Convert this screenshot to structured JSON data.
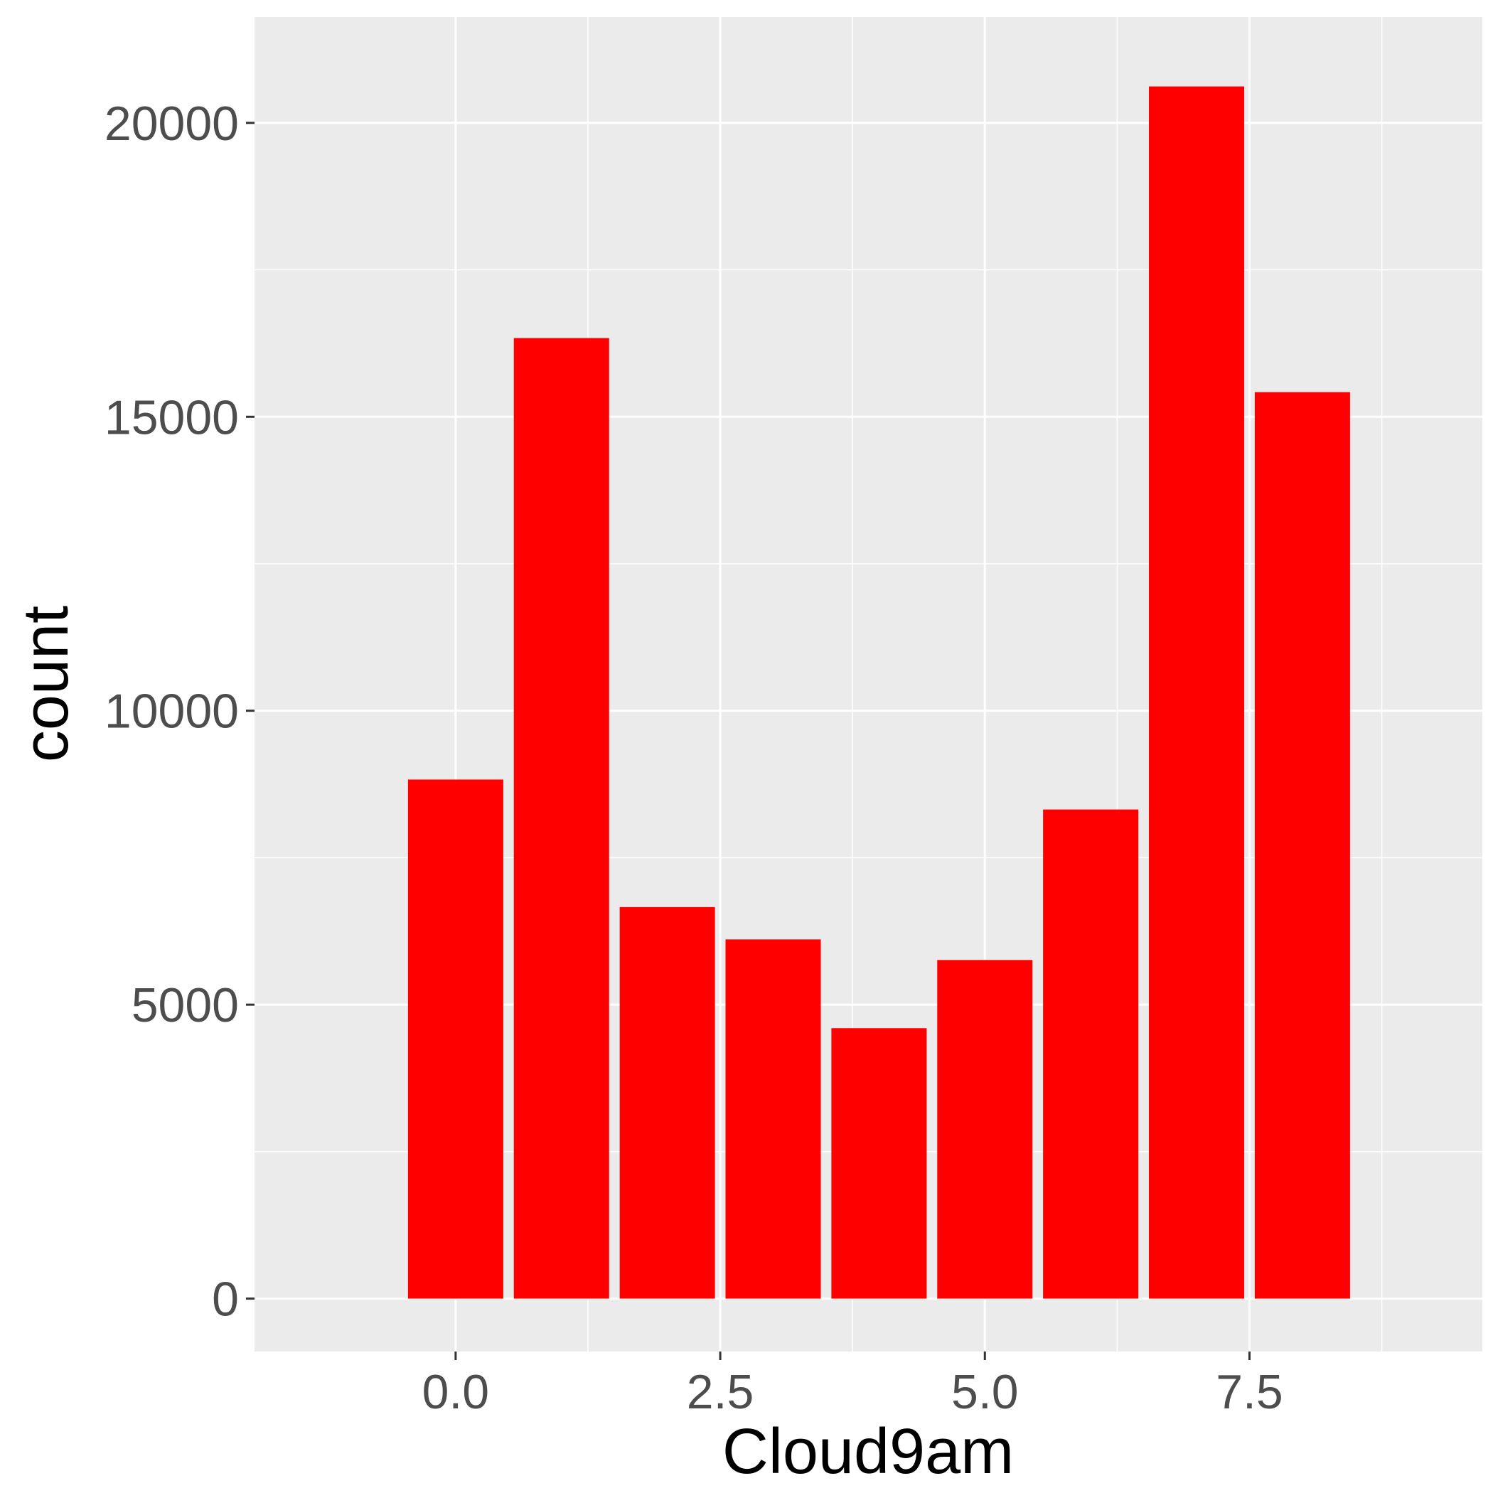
{
  "chart_data": {
    "type": "bar",
    "xlabel": "Cloud9am",
    "ylabel": "count",
    "x": [
      0,
      1,
      2,
      3,
      4,
      5,
      6,
      7,
      8
    ],
    "values": [
      8830,
      16340,
      6660,
      6110,
      4600,
      5760,
      8320,
      20620,
      15420
    ],
    "xlim": [
      -1.9,
      9.7
    ],
    "ylim": [
      -900,
      21800
    ],
    "xticks": [
      0.0,
      2.5,
      5.0,
      7.5
    ],
    "xtick_labels": [
      "0.0",
      "2.5",
      "5.0",
      "7.5"
    ],
    "yticks": [
      0,
      5000,
      10000,
      15000,
      20000
    ],
    "ytick_labels": [
      "0",
      "5000",
      "10000",
      "15000",
      "20000"
    ],
    "grid": true,
    "colors": {
      "bar": "#ff0000",
      "panel": "#ebebeb",
      "grid": "#ffffff",
      "tick_text": "#4d4d4d",
      "axis_title": "#000000"
    }
  }
}
